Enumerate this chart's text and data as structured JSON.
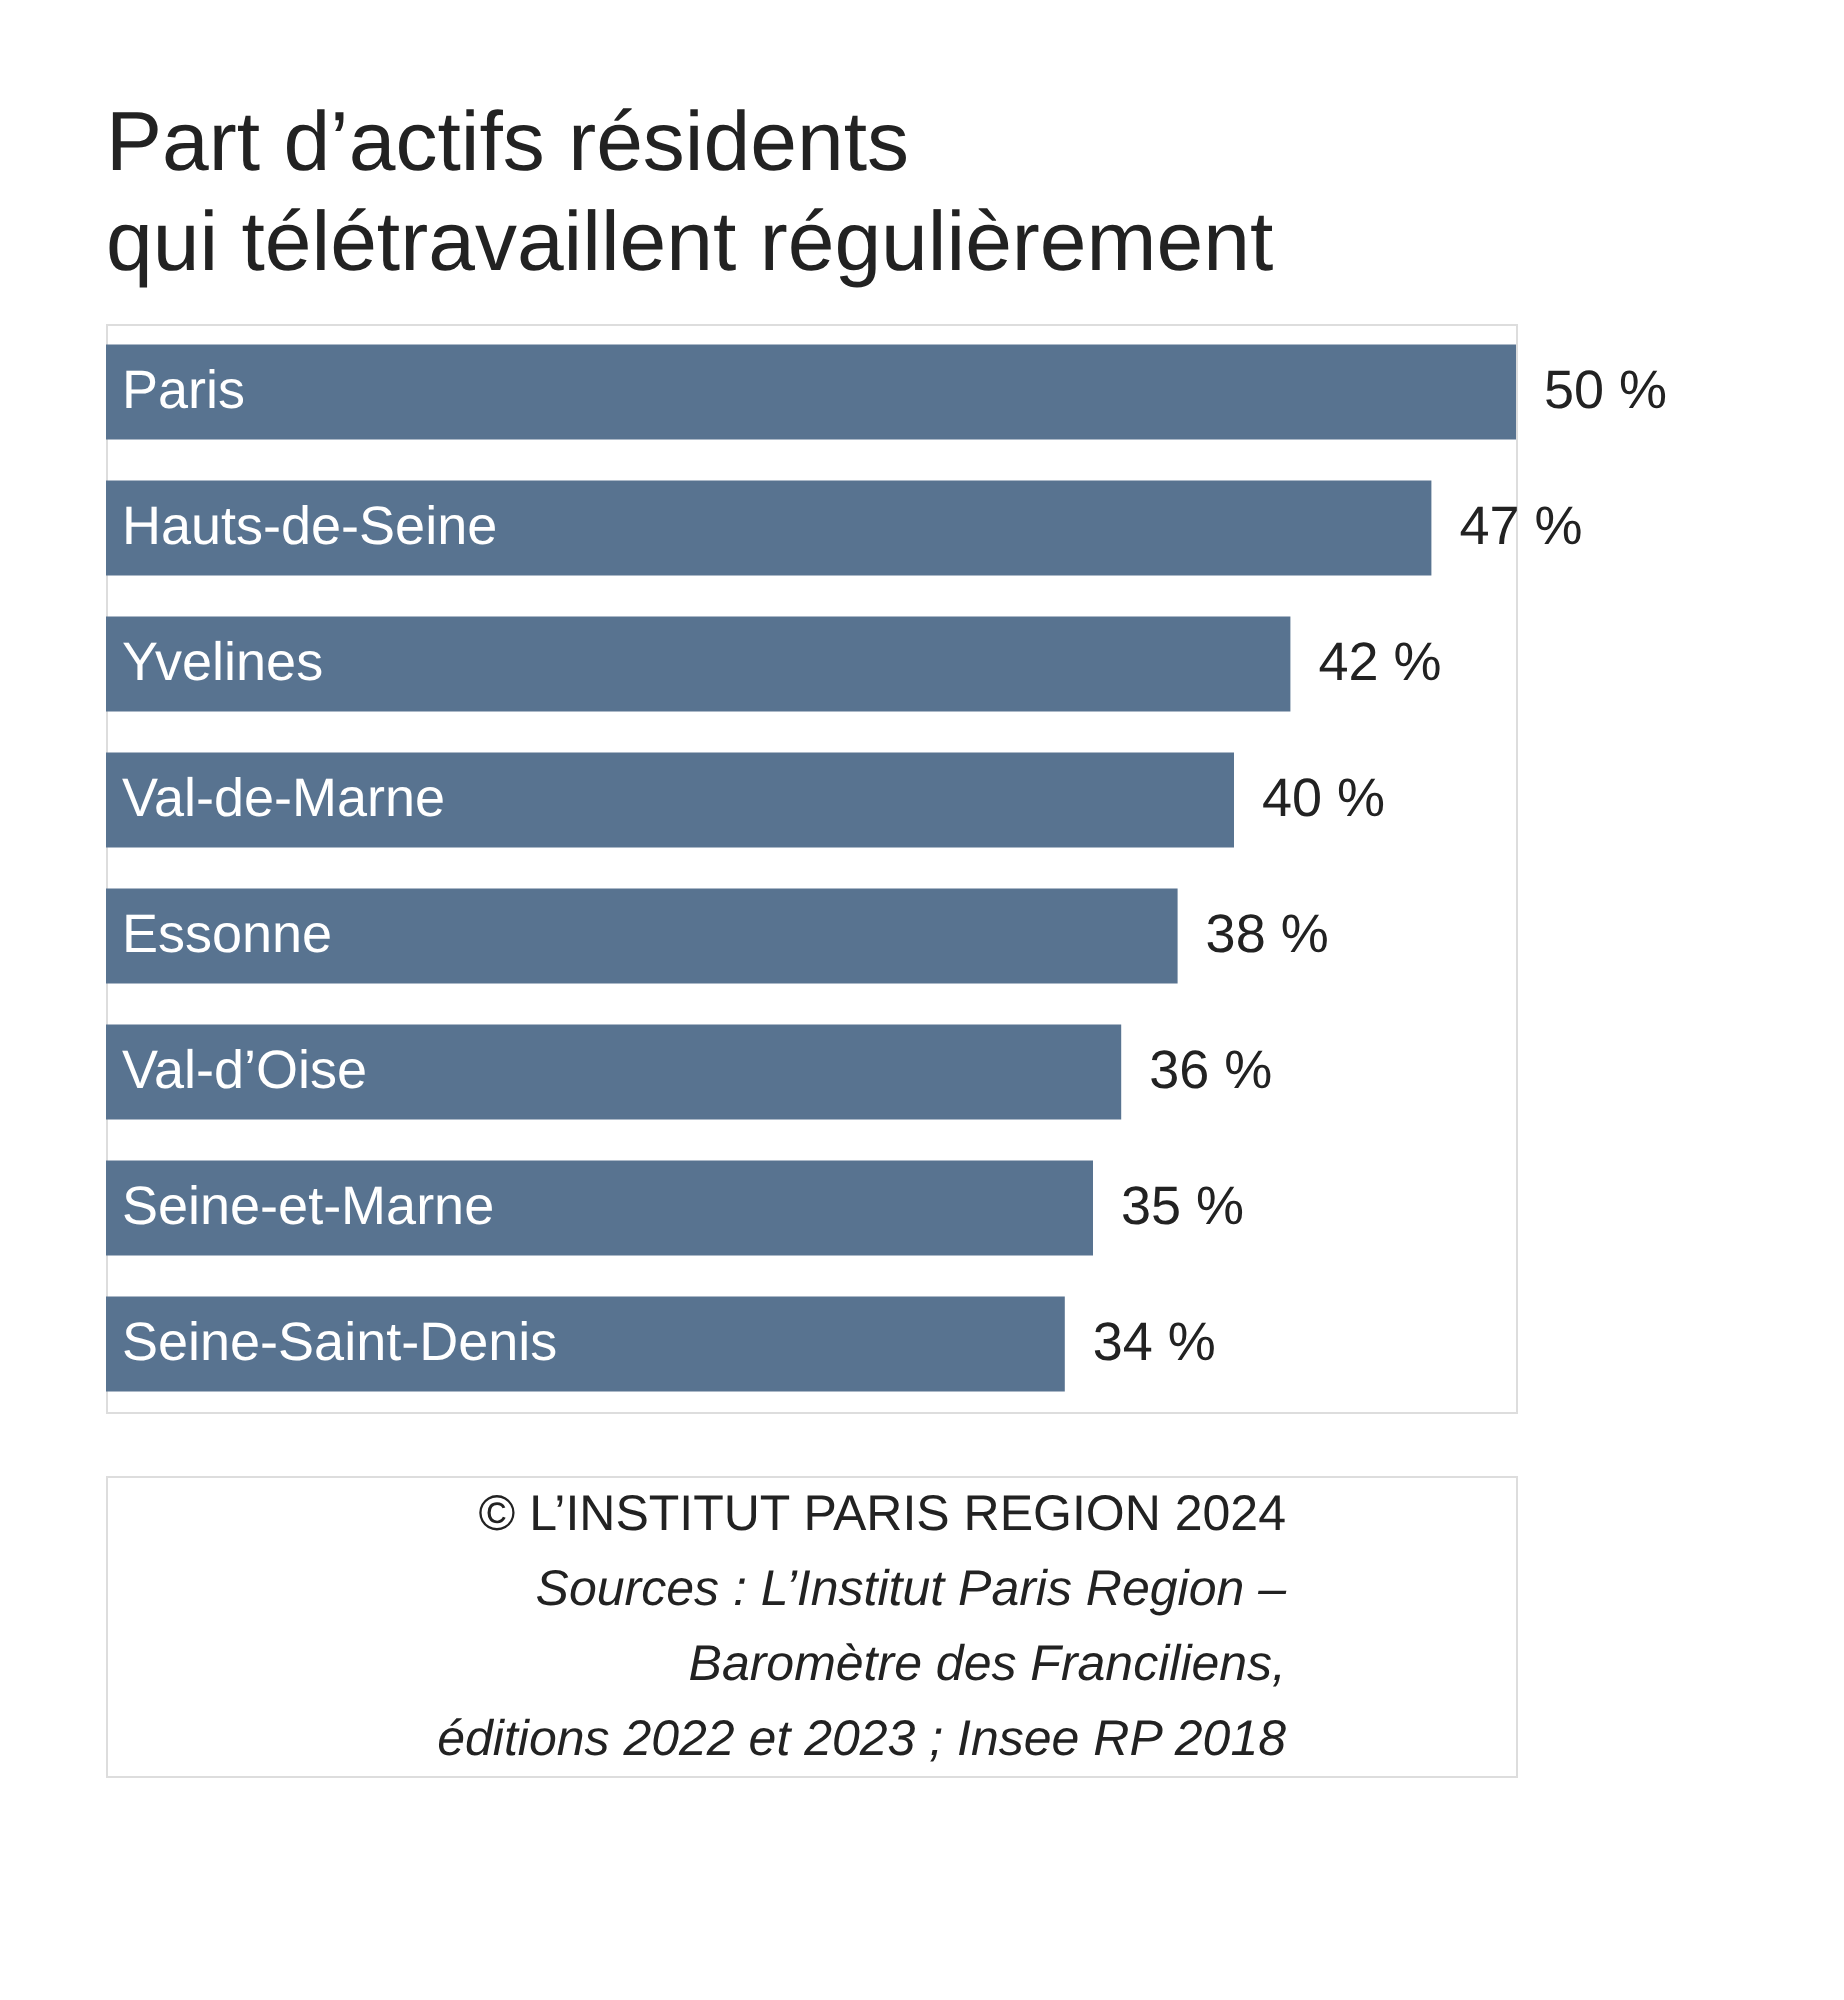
{
  "chart_data": {
    "type": "bar",
    "orientation": "horizontal",
    "title": [
      "Part d’actifs résidents",
      "qui télétravaillent régulièrement"
    ],
    "categories": [
      "Paris",
      "Hauts-de-Seine",
      "Yvelines",
      "Val-de-Marne",
      "Essonne",
      "Val-d’Oise",
      "Seine-et-Marne",
      "Seine-Saint-Denis"
    ],
    "values": [
      50,
      47,
      42,
      40,
      38,
      36,
      35,
      34
    ],
    "value_labels": [
      "50 %",
      "47 %",
      "42 %",
      "40 %",
      "38 %",
      "36 %",
      "35 %",
      "34 %"
    ],
    "color": "#587390",
    "annotations": [
      "© L’INSTITUT PARIS REGION 2024",
      "Sources : L’Institut Paris Region –",
      "Baromètre des Franciliens,",
      "éditions 2022 et 2023 ; Insee RP 2018"
    ]
  }
}
